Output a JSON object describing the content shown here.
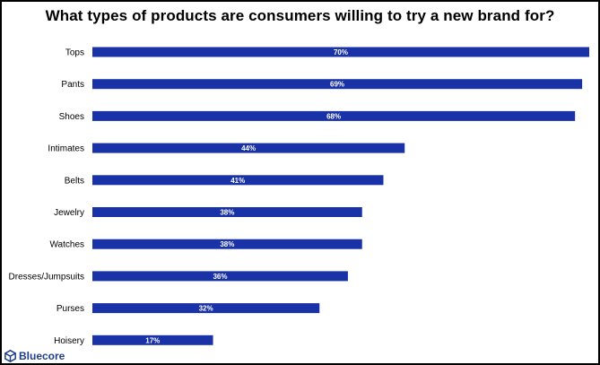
{
  "chart_data": {
    "type": "bar",
    "orientation": "horizontal",
    "title": "What types of products are consumers willing to try a new brand for?",
    "categories": [
      "Tops",
      "Pants",
      "Shoes",
      "Intimates",
      "Belts",
      "Jewelry",
      "Watches",
      "Dresses/Jumpsuits",
      "Purses",
      "Hoisery"
    ],
    "values": [
      70,
      69,
      68,
      44,
      41,
      38,
      38,
      36,
      32,
      17
    ],
    "value_labels": [
      "70%",
      "69%",
      "68%",
      "44%",
      "41%",
      "38%",
      "38%",
      "36%",
      "32%",
      "17%"
    ],
    "xlim": [
      0,
      70
    ],
    "xlabel": "",
    "ylabel": "",
    "grid": false,
    "bar_color": "#1a32a8"
  },
  "branding": {
    "logo_icon": "bluecore-cube-icon",
    "name": "Bluecore",
    "color": "#1f3d8a"
  }
}
